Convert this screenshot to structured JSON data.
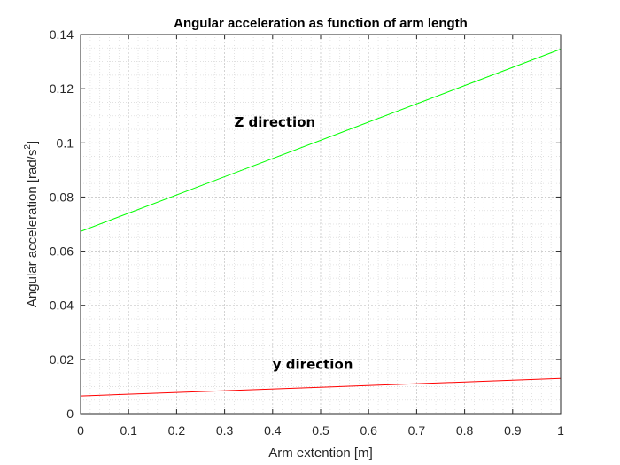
{
  "chart_data": {
    "type": "line",
    "title": "Angular acceleration as function of arm length",
    "xlabel": "Arm extention [m]",
    "ylabel_main": "Angular acceleration [rad/s",
    "ylabel_sup": "2",
    "ylabel_tail": "]",
    "xlim": [
      0,
      1
    ],
    "ylim": [
      0,
      0.14
    ],
    "xticks": [
      "0",
      "0.1",
      "0.2",
      "0.3",
      "0.4",
      "0.5",
      "0.6",
      "0.7",
      "0.8",
      "0.9",
      "1"
    ],
    "yticks": [
      "0",
      "0.02",
      "0.04",
      "0.06",
      "0.08",
      "0.1",
      "0.12",
      "0.14"
    ],
    "grid": true,
    "minor_grid": true,
    "series": [
      {
        "x": [
          0,
          1
        ],
        "y": [
          0.0673,
          0.1346
        ],
        "color": "#00ff00"
      },
      {
        "x": [
          0,
          1
        ],
        "y": [
          0.0065,
          0.013
        ],
        "color": "#ff0000"
      }
    ],
    "annotations": [
      {
        "text": "Z direction",
        "x": 0.32,
        "y": 0.106
      },
      {
        "text": "y direction",
        "x": 0.4,
        "y": 0.0165
      }
    ]
  }
}
